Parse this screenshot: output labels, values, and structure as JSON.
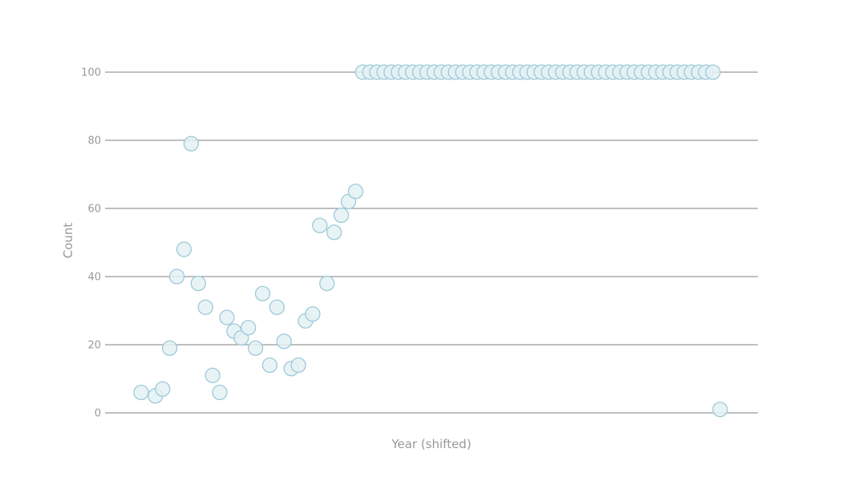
{
  "chart_data": {
    "type": "scatter",
    "title": "",
    "xlabel": "Year (shifted)",
    "ylabel": "Count",
    "ylim": [
      0,
      100
    ],
    "yticks": [
      0,
      20,
      40,
      60,
      80,
      100
    ],
    "x_tick_labels_shown": false,
    "grid": "horizontal",
    "colors": {
      "point_fill": "#e4f1f5",
      "point_stroke": "#9ecad8",
      "grid": "#999999",
      "text": "#999999"
    },
    "series": [
      {
        "x": [
          -81,
          -79,
          -78,
          -77,
          -76,
          -75,
          -74,
          -73,
          -72,
          -71,
          -70,
          -69,
          -68,
          -67,
          -66,
          -65,
          -64,
          -63,
          -62,
          -61,
          -60,
          -59,
          -58,
          -57,
          -56,
          -55,
          -54,
          -53,
          -52,
          -51,
          -50,
          -49,
          -48,
          -47,
          -46,
          -45,
          -44,
          -43,
          -42,
          -41,
          -40,
          -39,
          -38,
          -37,
          -36,
          -35,
          -34,
          -33,
          -32,
          -31,
          -30,
          -29,
          -28,
          -27,
          -26,
          -25,
          -24,
          -23,
          -22,
          -21,
          -20,
          -19,
          -18,
          -17,
          -16,
          -15,
          -14,
          -13,
          -12,
          -11,
          -10,
          -9,
          -8,
          -7,
          -6,
          -5,
          -4,
          -3,
          -2,
          -1,
          0
        ],
        "y": [
          6,
          5,
          7,
          19,
          40,
          48,
          79,
          38,
          31,
          11,
          6,
          28,
          24,
          22,
          25,
          19,
          35,
          14,
          31,
          21,
          13,
          14,
          27,
          29,
          55,
          38,
          53,
          58,
          62,
          65,
          100,
          100,
          100,
          100,
          100,
          100,
          100,
          100,
          100,
          100,
          100,
          100,
          100,
          100,
          100,
          100,
          100,
          100,
          100,
          100,
          100,
          100,
          100,
          100,
          100,
          100,
          100,
          100,
          100,
          100,
          100,
          100,
          100,
          100,
          100,
          100,
          100,
          100,
          100,
          100,
          100,
          100,
          100,
          100,
          100,
          100,
          100,
          100,
          100,
          100,
          1
        ]
      }
    ]
  }
}
